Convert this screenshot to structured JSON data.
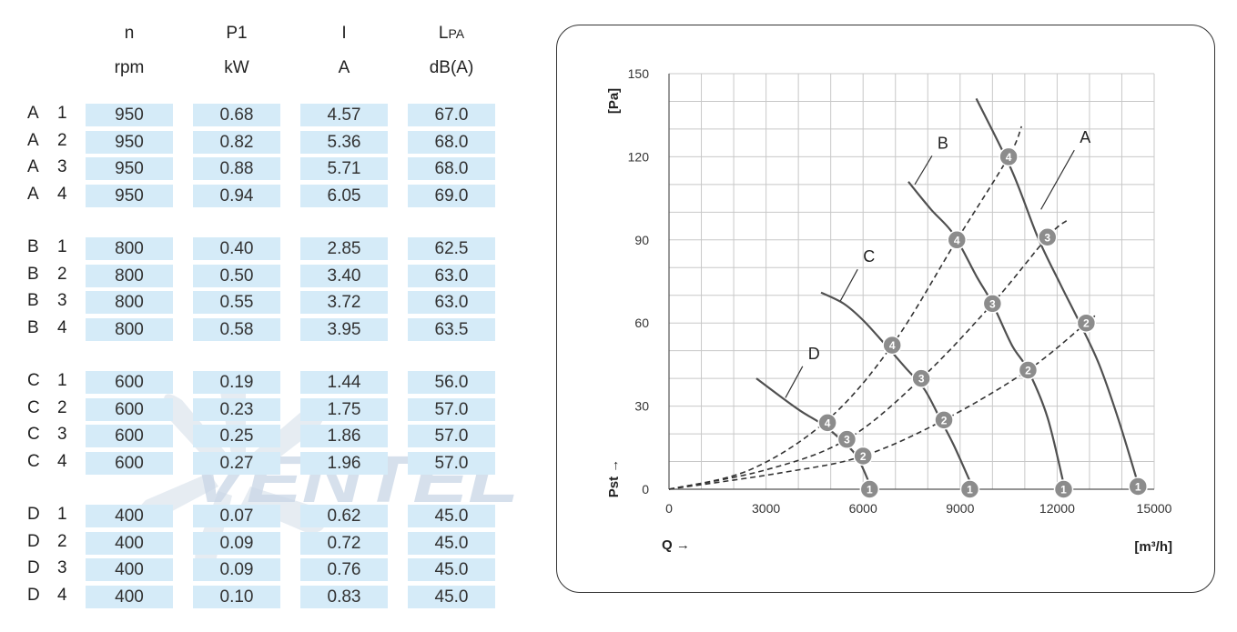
{
  "table": {
    "headers": [
      {
        "symbol": "n",
        "unit": "rpm"
      },
      {
        "symbol": "P1",
        "unit": "kW"
      },
      {
        "symbol": "I",
        "unit": "A"
      },
      {
        "symbol": "L",
        "symbol_sub": "PA",
        "unit": "dB(A)"
      }
    ],
    "groups": [
      {
        "curve": "A",
        "rows": [
          {
            "step": "1",
            "values": [
              "950",
              "0.68",
              "4.57",
              "67.0"
            ]
          },
          {
            "step": "2",
            "values": [
              "950",
              "0.82",
              "5.36",
              "68.0"
            ]
          },
          {
            "step": "3",
            "values": [
              "950",
              "0.88",
              "5.71",
              "68.0"
            ]
          },
          {
            "step": "4",
            "values": [
              "950",
              "0.94",
              "6.05",
              "69.0"
            ]
          }
        ]
      },
      {
        "curve": "B",
        "rows": [
          {
            "step": "1",
            "values": [
              "800",
              "0.40",
              "2.85",
              "62.5"
            ]
          },
          {
            "step": "2",
            "values": [
              "800",
              "0.50",
              "3.40",
              "63.0"
            ]
          },
          {
            "step": "3",
            "values": [
              "800",
              "0.55",
              "3.72",
              "63.0"
            ]
          },
          {
            "step": "4",
            "values": [
              "800",
              "0.58",
              "3.95",
              "63.5"
            ]
          }
        ]
      },
      {
        "curve": "C",
        "rows": [
          {
            "step": "1",
            "values": [
              "600",
              "0.19",
              "1.44",
              "56.0"
            ]
          },
          {
            "step": "2",
            "values": [
              "600",
              "0.23",
              "1.75",
              "57.0"
            ]
          },
          {
            "step": "3",
            "values": [
              "600",
              "0.25",
              "1.86",
              "57.0"
            ]
          },
          {
            "step": "4",
            "values": [
              "600",
              "0.27",
              "1.96",
              "57.0"
            ]
          }
        ]
      },
      {
        "curve": "D",
        "rows": [
          {
            "step": "1",
            "values": [
              "400",
              "0.07",
              "0.62",
              "45.0"
            ]
          },
          {
            "step": "2",
            "values": [
              "400",
              "0.09",
              "0.72",
              "45.0"
            ]
          },
          {
            "step": "3",
            "values": [
              "400",
              "0.09",
              "0.76",
              "45.0"
            ]
          },
          {
            "step": "4",
            "values": [
              "400",
              "0.10",
              "0.83",
              "45.0"
            ]
          }
        ]
      }
    ]
  },
  "watermark": {
    "text": "VENTEL",
    "color": "#c9d6e6"
  },
  "colors": {
    "cell_bg": "#d5ebf8",
    "grid": "#c8c8c8",
    "curve": "#505050",
    "marker": "#8c8c8c"
  },
  "chart_data": {
    "type": "line",
    "xlabel": "Q →",
    "ylabel": "Pst →",
    "x_unit": "[m³/h]",
    "y_unit": "[Pa]",
    "xlim": [
      0,
      15000
    ],
    "ylim": [
      0,
      150
    ],
    "x_ticks": [
      0,
      3000,
      6000,
      9000,
      12000,
      15000
    ],
    "y_ticks": [
      0,
      30,
      60,
      90,
      120,
      150
    ],
    "grid": true,
    "fan_curves": [
      {
        "name": "A",
        "points": [
          [
            9500,
            141
          ],
          [
            10600,
            115
          ],
          [
            11400,
            91
          ],
          [
            12100,
            74
          ],
          [
            12700,
            60
          ],
          [
            13300,
            45
          ],
          [
            13900,
            25
          ],
          [
            14500,
            2
          ]
        ]
      },
      {
        "name": "B",
        "points": [
          [
            7400,
            111
          ],
          [
            8100,
            101
          ],
          [
            8800,
            92
          ],
          [
            9500,
            77
          ],
          [
            10000,
            67
          ],
          [
            10600,
            52
          ],
          [
            11100,
            43
          ],
          [
            11700,
            26
          ],
          [
            12200,
            2
          ]
        ]
      },
      {
        "name": "C",
        "points": [
          [
            4700,
            71
          ],
          [
            5400,
            67
          ],
          [
            6000,
            61
          ],
          [
            6700,
            52
          ],
          [
            7300,
            44
          ],
          [
            7900,
            36
          ],
          [
            8400,
            25
          ],
          [
            8800,
            16
          ],
          [
            9300,
            3
          ]
        ]
      },
      {
        "name": "D",
        "points": [
          [
            2700,
            40
          ],
          [
            3500,
            33
          ],
          [
            4100,
            28
          ],
          [
            4800,
            23
          ],
          [
            5300,
            18
          ],
          [
            5800,
            12
          ],
          [
            6200,
            2
          ]
        ]
      }
    ],
    "system_curves": [
      {
        "points": [
          [
            0,
            0
          ],
          [
            2500,
            7
          ],
          [
            4900,
            25
          ],
          [
            6900,
            52
          ],
          [
            8900,
            90
          ],
          [
            10500,
            120
          ],
          [
            10900,
            131
          ]
        ]
      },
      {
        "points": [
          [
            0,
            0
          ],
          [
            3000,
            7
          ],
          [
            5500,
            18
          ],
          [
            7800,
            40
          ],
          [
            10000,
            67
          ],
          [
            11700,
            91
          ],
          [
            12300,
            97
          ]
        ]
      },
      {
        "points": [
          [
            0,
            0
          ],
          [
            3500,
            6
          ],
          [
            6000,
            12
          ],
          [
            8500,
            25
          ],
          [
            11100,
            43
          ],
          [
            12900,
            60
          ],
          [
            13200,
            63
          ]
        ]
      }
    ],
    "markers": [
      {
        "label": "1",
        "x": 14500,
        "y": 1
      },
      {
        "label": "2",
        "x": 12900,
        "y": 60
      },
      {
        "label": "3",
        "x": 11700,
        "y": 91
      },
      {
        "label": "4",
        "x": 10500,
        "y": 120
      },
      {
        "label": "1",
        "x": 12200,
        "y": 0
      },
      {
        "label": "2",
        "x": 11100,
        "y": 43
      },
      {
        "label": "3",
        "x": 10000,
        "y": 67
      },
      {
        "label": "4",
        "x": 8900,
        "y": 90
      },
      {
        "label": "1",
        "x": 9300,
        "y": 0
      },
      {
        "label": "2",
        "x": 8500,
        "y": 25
      },
      {
        "label": "3",
        "x": 7800,
        "y": 40
      },
      {
        "label": "4",
        "x": 6900,
        "y": 52
      },
      {
        "label": "1",
        "x": 6200,
        "y": 0
      },
      {
        "label": "2",
        "x": 6000,
        "y": 12
      },
      {
        "label": "3",
        "x": 5500,
        "y": 18
      },
      {
        "label": "4",
        "x": 4900,
        "y": 24
      }
    ],
    "curve_labels": [
      {
        "text": "A",
        "x": 12700,
        "y": 125,
        "line_to": [
          11500,
          101
        ]
      },
      {
        "text": "B",
        "x": 8300,
        "y": 123,
        "line_to": [
          7600,
          110
        ]
      },
      {
        "text": "C",
        "x": 6000,
        "y": 82,
        "line_to": [
          5300,
          68
        ]
      },
      {
        "text": "D",
        "x": 4300,
        "y": 47,
        "line_to": [
          3600,
          33
        ]
      }
    ]
  }
}
